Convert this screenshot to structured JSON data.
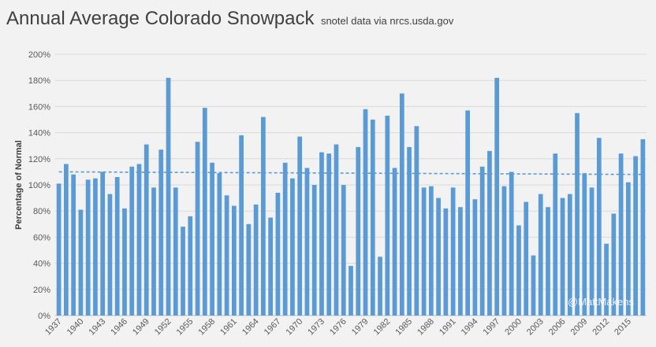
{
  "chart_data": {
    "type": "bar",
    "title": "Annual Average Colorado Snowpack",
    "subtitle": "snotel data via nrcs.usda.gov",
    "xlabel": "",
    "ylabel": "Percentage of Normal",
    "ylim": [
      0,
      200
    ],
    "yticks": [
      "0%",
      "20%",
      "40%",
      "60%",
      "80%",
      "100%",
      "120%",
      "140%",
      "160%",
      "180%",
      "200%"
    ],
    "categories": [
      1937,
      1938,
      1939,
      1940,
      1941,
      1942,
      1943,
      1944,
      1945,
      1946,
      1947,
      1948,
      1949,
      1950,
      1951,
      1952,
      1953,
      1954,
      1955,
      1956,
      1957,
      1958,
      1959,
      1960,
      1961,
      1962,
      1963,
      1964,
      1965,
      1966,
      1967,
      1968,
      1969,
      1970,
      1971,
      1972,
      1973,
      1974,
      1975,
      1976,
      1977,
      1978,
      1979,
      1980,
      1981,
      1982,
      1983,
      1984,
      1985,
      1986,
      1987,
      1988,
      1989,
      1990,
      1991,
      1992,
      1993,
      1994,
      1995,
      1996,
      1997,
      1998,
      1999,
      2000,
      2001,
      2002,
      2003,
      2004,
      2005,
      2006,
      2007,
      2008,
      2009,
      2010,
      2011,
      2012,
      2013,
      2014,
      2015,
      2016,
      2017
    ],
    "xticks": [
      "1937",
      "1940",
      "1943",
      "1946",
      "1949",
      "1952",
      "1955",
      "1958",
      "1961",
      "1964",
      "1967",
      "1970",
      "1973",
      "1976",
      "1979",
      "1982",
      "1985",
      "1988",
      "1991",
      "1994",
      "1997",
      "2000",
      "2003",
      "2006",
      "2009",
      "2012",
      "2015"
    ],
    "values": [
      101,
      116,
      108,
      81,
      104,
      105,
      110,
      93,
      106,
      82,
      114,
      116,
      131,
      98,
      127,
      182,
      98,
      68,
      76,
      133,
      159,
      117,
      109,
      92,
      84,
      138,
      70,
      85,
      152,
      75,
      94,
      117,
      105,
      137,
      113,
      100,
      125,
      124,
      131,
      100,
      38,
      129,
      158,
      150,
      45,
      153,
      113,
      170,
      129,
      145,
      98,
      99,
      90,
      82,
      98,
      83,
      157,
      89,
      114,
      126,
      182,
      99,
      110,
      69,
      87,
      46,
      93,
      83,
      124,
      90,
      93,
      155,
      109,
      98,
      136,
      55,
      78,
      124,
      102,
      122,
      135
    ],
    "trendline": {
      "style": "dashed",
      "start": 110,
      "end": 108
    },
    "grid": true,
    "bar_color": "#5b9bd5",
    "watermark": "@MattMakens"
  }
}
